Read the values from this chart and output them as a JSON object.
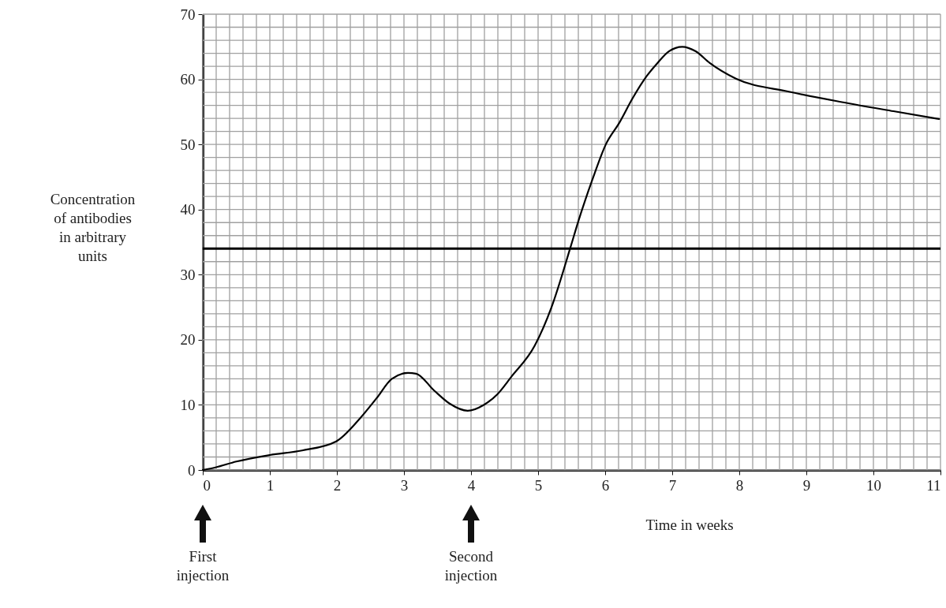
{
  "chart_data": {
    "type": "line",
    "xlabel": "Time in weeks",
    "ylabel": "Concentration of antibodies in arbitrary units",
    "x": [
      0,
      0.19,
      0.5,
      1.0,
      1.48,
      1.99,
      2.35,
      2.59,
      2.82,
      3.06,
      3.18,
      3.45,
      3.68,
      3.95,
      4.19,
      4.39,
      4.6,
      4.95,
      5.2,
      5.48,
      5.6,
      5.81,
      6.01,
      6.21,
      6.41,
      6.62,
      6.78,
      6.95,
      7.15,
      7.35,
      7.56,
      7.95,
      8.74,
      9.53,
      10.3,
      10.98
    ],
    "series": [
      {
        "color": "#000000",
        "values": [
          0,
          0.4,
          1.3,
          2.3,
          3.0,
          4.4,
          8.0,
          11,
          14,
          14.9,
          14.8,
          12.2,
          10.2,
          9.1,
          10,
          11.6,
          14.3,
          19.1,
          25,
          34.1,
          38.2,
          44.6,
          50,
          53.3,
          57.1,
          60.5,
          62.5,
          64.3,
          65,
          64.3,
          62.5,
          60.1,
          58.1,
          56.5,
          55.1,
          53.9
        ]
      }
    ],
    "xlim": [
      0,
      11
    ],
    "ylim": [
      0,
      70
    ],
    "xticks": [
      0,
      {
        "value": 0.2,
        "label": null
      },
      {
        "value": 0.4,
        "label": null
      },
      {
        "value": 0.6,
        "label": null
      },
      {
        "value": 0.8,
        "label": null
      },
      1,
      {
        "value": 1.2,
        "label": null
      },
      {
        "value": 1.4,
        "label": null
      },
      {
        "value": 1.6,
        "label": null
      },
      {
        "value": 1.8,
        "label": null
      },
      2,
      {
        "value": 2.2,
        "label": null
      },
      {
        "value": 2.4,
        "label": null
      },
      {
        "value": 2.6,
        "label": null
      },
      {
        "value": 2.8,
        "label": null
      },
      3,
      {
        "value": 3.2,
        "label": null
      },
      {
        "value": 3.4,
        "label": null
      },
      {
        "value": 3.6,
        "label": null
      },
      {
        "value": 3.8,
        "label": null
      },
      4,
      {
        "value": 4.2,
        "label": null
      },
      {
        "value": 4.4,
        "label": null
      },
      {
        "value": 4.6,
        "label": null
      },
      {
        "value": 4.8,
        "label": null
      },
      5,
      {
        "value": 5.2,
        "label": null
      },
      {
        "value": 5.4,
        "label": null
      },
      {
        "value": 5.6,
        "label": null
      },
      {
        "value": 5.8,
        "label": null
      },
      6,
      {
        "value": 6.2,
        "label": null
      },
      {
        "value": 6.4,
        "label": null
      },
      {
        "value": 6.6,
        "label": null
      },
      {
        "value": 6.8,
        "label": null
      },
      7,
      {
        "value": 7.2,
        "label": null
      },
      {
        "value": 7.4,
        "label": null
      },
      {
        "value": 7.6,
        "label": null
      },
      {
        "value": 7.8,
        "label": null
      },
      8,
      {
        "value": 8.2,
        "label": null
      },
      {
        "value": 8.4,
        "label": null
      },
      {
        "value": 8.6,
        "label": null
      },
      {
        "value": 8.8,
        "label": null
      },
      9,
      {
        "value": 9.2,
        "label": null
      },
      {
        "value": 9.4,
        "label": null
      },
      {
        "value": 9.6,
        "label": null
      },
      {
        "value": 9.8,
        "label": null
      },
      10,
      {
        "value": 10.2,
        "label": null
      },
      {
        "value": 10.4,
        "label": null
      },
      {
        "value": 10.6,
        "label": null
      },
      {
        "value": 10.8,
        "label": null
      },
      11
    ],
    "yticks": [
      0,
      {
        "value": 2,
        "label": null
      },
      {
        "value": 4,
        "label": null
      },
      {
        "value": 6,
        "label": null
      },
      {
        "value": 8,
        "label": null
      },
      10,
      {
        "value": 12,
        "label": null
      },
      {
        "value": 14,
        "label": null
      },
      {
        "value": 16,
        "label": null
      },
      {
        "value": 18,
        "label": null
      },
      20,
      {
        "value": 22,
        "label": null
      },
      {
        "value": 24,
        "label": null
      },
      {
        "value": 26,
        "label": null
      },
      {
        "value": 28,
        "label": null
      },
      30,
      {
        "value": 32,
        "label": null
      },
      {
        "value": 34,
        "label": null
      },
      {
        "value": 36,
        "label": null
      },
      {
        "value": 38,
        "label": null
      },
      40,
      {
        "value": 42,
        "label": null
      },
      {
        "value": 44,
        "label": null
      },
      {
        "value": 46,
        "label": null
      },
      {
        "value": 48,
        "label": null
      },
      50,
      {
        "value": 52,
        "label": null
      },
      {
        "value": 54,
        "label": null
      },
      {
        "value": 56,
        "label": null
      },
      {
        "value": 58,
        "label": null
      },
      60,
      {
        "value": 62,
        "label": null
      },
      {
        "value": 64,
        "label": null
      },
      {
        "value": 66,
        "label": null
      },
      {
        "value": 68,
        "label": null
      },
      70
    ],
    "grid": true,
    "marker": "none",
    "line_style": "solid",
    "ref_lines": [
      {
        "axis": "y",
        "value": 34,
        "color": "#000000"
      }
    ],
    "annotations": [
      "First injection",
      "Second injection"
    ]
  }
}
